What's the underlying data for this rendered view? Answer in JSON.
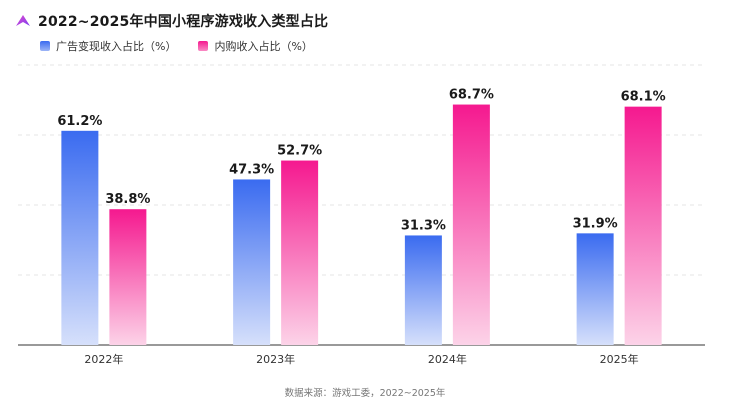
{
  "title": "2022~2025年中国小程序游戏收入类型占比",
  "source": "数据来源：游戏工委，2022~2025年",
  "colors": {
    "ad_top": "#3a6bf0",
    "ad_bottom": "#d6e0fb",
    "iap_top": "#f5198f",
    "iap_bottom": "#fcd3e8"
  },
  "chart_data": {
    "type": "bar",
    "title": "2022~2025年中国小程序游戏收入类型占比",
    "categories": [
      "2022年",
      "2023年",
      "2024年",
      "2025年"
    ],
    "series": [
      {
        "name": "广告变现收入占比（%）",
        "values": [
          61.2,
          47.3,
          31.3,
          31.9
        ],
        "labels": [
          "61.2%",
          "47.3%",
          "31.3%",
          "31.9%"
        ]
      },
      {
        "name": "内购收入占比（%）",
        "values": [
          38.8,
          52.7,
          68.7,
          68.1
        ],
        "labels": [
          "38.8%",
          "52.7%",
          "68.7%",
          "68.1%"
        ]
      }
    ],
    "ylim": [
      0,
      80
    ],
    "grid": true,
    "legend": "top-left"
  }
}
